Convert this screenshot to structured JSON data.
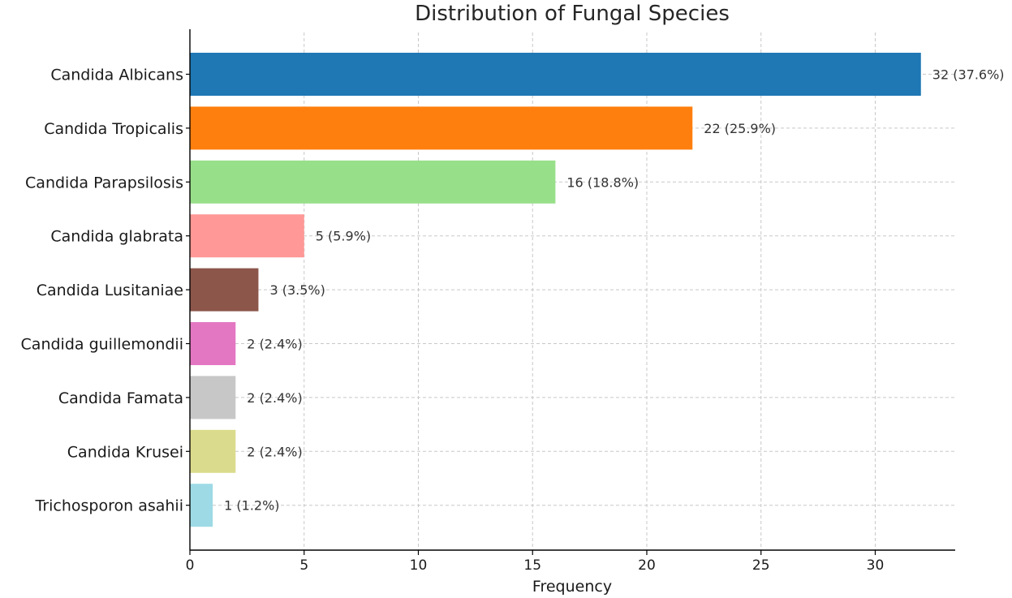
{
  "chart_data": {
    "type": "bar",
    "orientation": "horizontal",
    "title": "Distribution of Fungal Species",
    "xlabel": "Frequency",
    "ylabel": "",
    "xlim": [
      0,
      33.5
    ],
    "xticks": [
      0,
      5,
      10,
      15,
      20,
      25,
      30
    ],
    "grid": true,
    "categories": [
      "Candida Albicans",
      "Candida Tropicalis",
      "Candida Parapsilosis",
      "Candida glabrata",
      "Candida Lusitaniae",
      "Candida guillemondii",
      "Candida Famata",
      "Candida Krusei",
      "Trichosporon asahii"
    ],
    "values": [
      32,
      22,
      16,
      5,
      3,
      2,
      2,
      2,
      1
    ],
    "data_labels": [
      "32 (37.6%)",
      "22 (25.9%)",
      "16 (18.8%)",
      "5 (5.9%)",
      "3 (3.5%)",
      "2 (2.4%)",
      "2 (2.4%)",
      "2 (2.4%)",
      "1 (1.2%)"
    ],
    "colors": [
      "#1f77b4",
      "#ff7f0e",
      "#98df8a",
      "#ff9896",
      "#8c564b",
      "#e377c2",
      "#c7c7c7",
      "#dbdb8d",
      "#9edae5"
    ]
  }
}
